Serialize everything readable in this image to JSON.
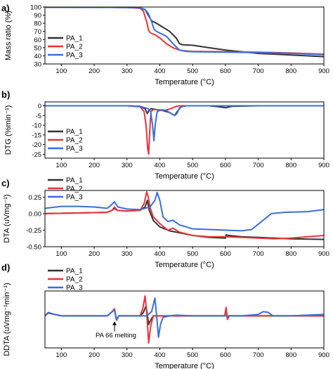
{
  "chart_data": [
    {
      "panel": "a)",
      "type": "line",
      "xlabel": "Temperature (°C)",
      "ylabel": "Mass ratio (%)",
      "xlim": [
        50,
        900
      ],
      "ylim": [
        30,
        100
      ],
      "xticks": [
        100,
        200,
        300,
        400,
        500,
        600,
        700,
        800,
        900
      ],
      "yticks": [
        30,
        40,
        50,
        60,
        70,
        80,
        90,
        100
      ],
      "legend_position": "bottom-left",
      "series": [
        {
          "name": "PA_1",
          "color": "#333333",
          "x": [
            50,
            300,
            340,
            355,
            365,
            375,
            390,
            410,
            430,
            450,
            460,
            470,
            500,
            550,
            600,
            650,
            700,
            800,
            900
          ],
          "y": [
            99.8,
            99.5,
            99,
            97,
            90,
            83,
            80,
            75,
            70,
            62,
            55,
            53.5,
            53,
            50,
            47,
            45,
            43,
            41,
            39
          ]
        },
        {
          "name": "PA_2",
          "color": "#e8333b",
          "x": [
            50,
            300,
            340,
            350,
            360,
            366,
            372,
            385,
            400,
            420,
            440,
            460,
            480,
            500,
            600,
            700,
            800,
            900
          ],
          "y": [
            99.8,
            99.5,
            98.5,
            95,
            82,
            71,
            68,
            66,
            62,
            55,
            50,
            47,
            46,
            45.5,
            45,
            44.5,
            43.5,
            42
          ]
        },
        {
          "name": "PA_3",
          "color": "#3a6fd8",
          "x": [
            50,
            300,
            340,
            355,
            365,
            375,
            382,
            390,
            400,
            420,
            440,
            460,
            480,
            500,
            600,
            700,
            800,
            900
          ],
          "y": [
            99.8,
            99.5,
            99,
            97,
            92,
            82,
            73,
            70,
            68,
            64,
            55,
            47,
            45.5,
            45,
            44.5,
            44,
            43,
            41.5
          ]
        }
      ]
    },
    {
      "panel": "b)",
      "type": "line",
      "xlabel": "Temperature (°C)",
      "ylabel": "DTG (%min⁻¹)",
      "xlim": [
        50,
        900
      ],
      "ylim": [
        -27,
        2
      ],
      "xticks": [
        100,
        200,
        300,
        400,
        500,
        600,
        700,
        800,
        900
      ],
      "yticks": [
        0,
        -5,
        -10,
        -15,
        -20,
        -25
      ],
      "legend_position": "bottom-left",
      "series": [
        {
          "name": "PA_1",
          "color": "#333333",
          "x": [
            50,
            300,
            340,
            355,
            362,
            368,
            375,
            390,
            410,
            430,
            445,
            455,
            465,
            480,
            550,
            580,
            600,
            620,
            700,
            900
          ],
          "y": [
            0,
            0,
            -0.3,
            -1.5,
            -4,
            -2,
            -1.5,
            -2,
            -2.5,
            -3.5,
            -5,
            -2.5,
            -0.5,
            0,
            0,
            -0.5,
            -1,
            -0.3,
            0,
            0
          ]
        },
        {
          "name": "PA_2",
          "color": "#e8333b",
          "x": [
            50,
            300,
            340,
            352,
            358,
            363,
            366,
            369,
            373,
            380,
            395,
            410,
            425,
            440,
            450,
            460,
            480,
            600,
            900
          ],
          "y": [
            0,
            0,
            -0.5,
            -3,
            -10,
            -22,
            -25,
            -14,
            -3,
            -2,
            -2,
            -2.5,
            -2,
            -1,
            -0.3,
            0,
            0,
            0,
            0
          ]
        },
        {
          "name": "PA_3",
          "color": "#3a6fd8",
          "x": [
            50,
            300,
            340,
            355,
            365,
            372,
            378,
            382,
            386,
            392,
            405,
            420,
            435,
            445,
            452,
            460,
            475,
            500,
            900
          ],
          "y": [
            0,
            0,
            -0.3,
            -1,
            -1.5,
            -3,
            -10,
            -18,
            -10,
            -3,
            -2,
            -2.5,
            -4,
            -5,
            -4,
            -1,
            0,
            0,
            0
          ]
        }
      ]
    },
    {
      "panel": "c)",
      "type": "line",
      "xlabel": "Temperature (°C)",
      "ylabel": "DTA (uVmg⁻¹)",
      "xlim": [
        50,
        900
      ],
      "ylim": [
        -0.5,
        0.35
      ],
      "xticks": [
        100,
        200,
        300,
        400,
        500,
        600,
        700,
        800,
        900
      ],
      "yticks": [
        0.25,
        0.0,
        -0.25,
        -0.5
      ],
      "yticklabels": [
        "0.25",
        "0.00",
        "-0.25",
        "-0.50"
      ],
      "legend_position": "top-left",
      "series": [
        {
          "name": "PA_1",
          "color": "#333333",
          "x": [
            50,
            150,
            240,
            255,
            262,
            270,
            300,
            340,
            355,
            362,
            368,
            380,
            400,
            430,
            470,
            500,
            550,
            600,
            602,
            610,
            650,
            700,
            800,
            900
          ],
          "y": [
            0,
            0.01,
            0.02,
            0.05,
            0.08,
            0.05,
            0.04,
            0.05,
            0.1,
            0.2,
            0.05,
            -0.1,
            -0.2,
            -0.26,
            -0.3,
            -0.33,
            -0.36,
            -0.37,
            -0.32,
            -0.33,
            -0.35,
            -0.36,
            -0.38,
            -0.39
          ]
        },
        {
          "name": "PA_2",
          "color": "#e8333b",
          "x": [
            50,
            150,
            240,
            255,
            262,
            270,
            300,
            340,
            352,
            360,
            365,
            370,
            380,
            400,
            425,
            440,
            460,
            500,
            550,
            600,
            650,
            700,
            750,
            800,
            900
          ],
          "y": [
            0,
            0.01,
            0.02,
            0.05,
            0.1,
            0.05,
            0.04,
            0.05,
            0.15,
            0.33,
            0.25,
            0.1,
            -0.05,
            -0.15,
            -0.25,
            -0.22,
            -0.28,
            -0.33,
            -0.35,
            -0.35,
            -0.36,
            -0.37,
            -0.38,
            -0.37,
            -0.33
          ]
        },
        {
          "name": "PA_3",
          "color": "#3a6fd8",
          "x": [
            50,
            100,
            150,
            200,
            240,
            250,
            262,
            272,
            300,
            340,
            370,
            385,
            392,
            400,
            410,
            425,
            440,
            460,
            500,
            550,
            600,
            650,
            680,
            710,
            740,
            780,
            850,
            900
          ],
          "y": [
            0.08,
            0.11,
            0.11,
            0.1,
            0.08,
            0.12,
            0.18,
            0.1,
            0.07,
            0.06,
            0.1,
            0.2,
            0.32,
            0.2,
            -0.05,
            -0.12,
            -0.1,
            -0.17,
            -0.23,
            -0.24,
            -0.25,
            -0.26,
            -0.24,
            -0.12,
            0.0,
            0.02,
            0.03,
            0.06
          ]
        }
      ]
    },
    {
      "panel": "d)",
      "type": "line",
      "xlabel": "Temperature (°C)",
      "ylabel": "DDTA (uVmg⁻¹min⁻¹)",
      "xlim": [
        50,
        900
      ],
      "ylim": [
        -0.45,
        0.35
      ],
      "xticks": [
        100,
        200,
        300,
        400,
        500,
        600,
        700,
        800,
        900
      ],
      "annotation": "PA 66 melting",
      "annotation_x": 262,
      "legend_position": "top-left",
      "series": [
        {
          "name": "PA_1",
          "color": "#333333",
          "x": [
            50,
            60,
            80,
            100,
            240,
            255,
            262,
            268,
            275,
            300,
            340,
            350,
            358,
            362,
            366,
            372,
            380,
            400,
            450,
            500,
            550,
            598,
            602,
            606,
            612,
            650,
            700,
            900
          ],
          "y": [
            0,
            0.04,
            0.02,
            0,
            0,
            0.06,
            0.09,
            -0.06,
            0,
            0,
            0,
            0.05,
            0.14,
            0.02,
            -0.12,
            -0.06,
            0,
            0,
            0,
            0,
            0,
            0,
            0.1,
            -0.04,
            0,
            0,
            0,
            0
          ]
        },
        {
          "name": "PA_2",
          "color": "#e8333b",
          "x": [
            50,
            60,
            80,
            100,
            240,
            255,
            262,
            268,
            275,
            300,
            340,
            348,
            355,
            360,
            366,
            372,
            380,
            400,
            450,
            500,
            550,
            598,
            602,
            606,
            612,
            650,
            700,
            900
          ],
          "y": [
            0,
            0.04,
            0.02,
            0,
            0,
            0.06,
            0.1,
            -0.06,
            0,
            0,
            0,
            0.1,
            0.28,
            0.05,
            -0.38,
            -0.15,
            0,
            0,
            0,
            0,
            0,
            0,
            0.12,
            -0.05,
            0,
            0,
            0,
            0
          ]
        },
        {
          "name": "PA_3",
          "color": "#3a6fd8",
          "x": [
            50,
            60,
            80,
            100,
            240,
            255,
            262,
            268,
            275,
            300,
            360,
            375,
            385,
            390,
            396,
            402,
            410,
            430,
            450,
            500,
            550,
            650,
            700,
            715,
            730,
            745,
            800,
            900
          ],
          "y": [
            0,
            0.05,
            0.02,
            0,
            0,
            0.06,
            0.08,
            -0.05,
            0,
            0,
            0,
            0.06,
            0.25,
            0.02,
            -0.3,
            -0.12,
            -0.02,
            0,
            0.01,
            0,
            0,
            0,
            0.02,
            0.06,
            0.05,
            0,
            0,
            0.02
          ]
        }
      ]
    }
  ]
}
